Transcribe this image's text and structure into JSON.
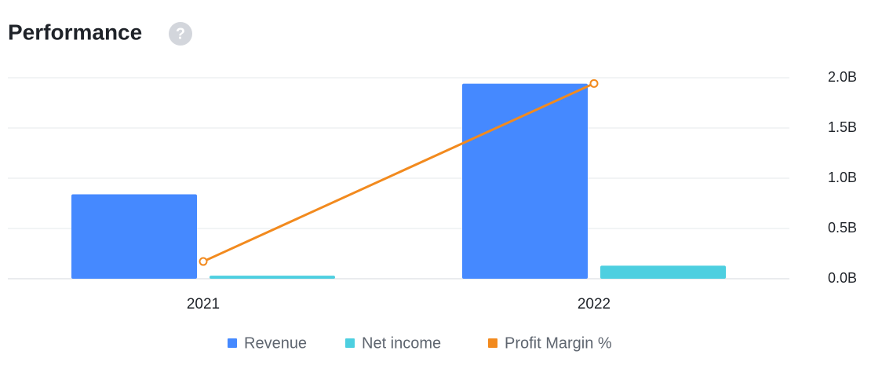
{
  "chart_data": {
    "type": "bar",
    "title": "Performance",
    "help_icon": "?",
    "categories": [
      "2021",
      "2022"
    ],
    "series": [
      {
        "name": "Revenue",
        "color": "#4589ff",
        "values": [
          0.84,
          1.94
        ]
      },
      {
        "name": "Net income",
        "color": "#4dcfe0",
        "values": [
          0.03,
          0.13
        ]
      },
      {
        "name": "Profit Margin %",
        "color": "#f28a1e",
        "type": "line",
        "axis": "y2",
        "values": [
          3.6,
          6.7
        ]
      }
    ],
    "ylim": [
      0,
      2
    ],
    "yticks": [
      {
        "value": 0,
        "label": "0.0B"
      },
      {
        "value": 0.5,
        "label": "0.5B"
      },
      {
        "value": 1,
        "label": "1.0B"
      },
      {
        "value": 1.5,
        "label": "1.5B"
      },
      {
        "value": 2,
        "label": "2.0B"
      }
    ],
    "y2lim": [
      3.3,
      6.8
    ],
    "grid": true,
    "legend": "bottom"
  }
}
